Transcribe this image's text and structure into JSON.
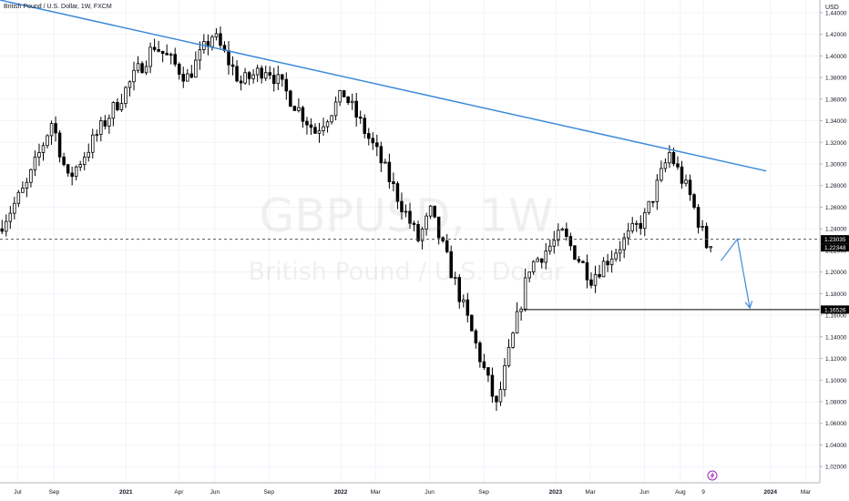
{
  "header": {
    "title": "British Pound / U.S. Dollar, 1W, FXCM",
    "currency": "USD"
  },
  "watermark": {
    "symbol": "GBPUSD, 1W",
    "name": "British Pound / U.S. Dollar"
  },
  "colors": {
    "up_candle_fill": "#ffffff",
    "down_candle_fill": "#000000",
    "candle_outline": "#000000",
    "trendline": "#3d8bd9",
    "projection": "#3d8bd9",
    "support_line": "#000000",
    "label_bg": "#000000",
    "label_text": "#ffffff",
    "axis_text": "#131722",
    "event_icon": "#9c27b0"
  },
  "event_icon": "lightning-icon",
  "chart_data": {
    "type": "candlestick",
    "title": "British Pound / U.S. Dollar, 1W, FXCM",
    "y_unit": "USD",
    "ylim": [
      1.005,
      1.4517
    ],
    "xlim": [
      "2020-06-01",
      "2024-03-25"
    ],
    "grid": true,
    "y_ticks": [
      "1.44000",
      "1.42000",
      "1.40000",
      "1.38000",
      "1.36000",
      "1.34000",
      "1.32000",
      "1.30000",
      "1.28000",
      "1.26000",
      "1.24000",
      "1.22000",
      "1.20000",
      "1.18000",
      "1.16000",
      "1.14000",
      "1.12000",
      "1.10000",
      "1.08000",
      "1.06000",
      "1.04000",
      "1.02000"
    ],
    "x_ticks": [
      {
        "label": "Jul",
        "date": "2020-07-01"
      },
      {
        "label": "Sep",
        "date": "2020-09-01"
      },
      {
        "label": "2021",
        "date": "2021-01-01"
      },
      {
        "label": "Apr",
        "date": "2021-04-01"
      },
      {
        "label": "Jun",
        "date": "2021-06-01"
      },
      {
        "label": "Sep",
        "date": "2021-09-01"
      },
      {
        "label": "2022",
        "date": "2022-01-01"
      },
      {
        "label": "Mar",
        "date": "2022-03-01"
      },
      {
        "label": "Jun",
        "date": "2022-06-01"
      },
      {
        "label": "Sep",
        "date": "2022-09-01"
      },
      {
        "label": "2023",
        "date": "2023-01-01"
      },
      {
        "label": "Mar",
        "date": "2023-03-01"
      },
      {
        "label": "Jun",
        "date": "2023-06-01"
      },
      {
        "label": "Aug",
        "date": "2023-08-01"
      },
      {
        "label": "9",
        "date": "2023-09-09"
      },
      {
        "label": "2024",
        "date": "2024-01-01"
      },
      {
        "label": "Mar",
        "date": "2024-03-01"
      }
    ],
    "price_labels": [
      {
        "text": "1.23035",
        "value": 1.23035
      },
      {
        "text": "1.22348",
        "value": 1.22348
      },
      {
        "text": "1.16526",
        "value": 1.16526
      }
    ],
    "current_price": 1.23035,
    "anchors": [
      {
        "date": "2020-06-01",
        "price": 1.24
      },
      {
        "date": "2020-07-20",
        "price": 1.28
      },
      {
        "date": "2020-09-01",
        "price": 1.34
      },
      {
        "date": "2020-09-28",
        "price": 1.285
      },
      {
        "date": "2020-12-07",
        "price": 1.345
      },
      {
        "date": "2021-02-22",
        "price": 1.41
      },
      {
        "date": "2021-04-19",
        "price": 1.38
      },
      {
        "date": "2021-06-01",
        "price": 1.42
      },
      {
        "date": "2021-07-19",
        "price": 1.375
      },
      {
        "date": "2021-09-01",
        "price": 1.39
      },
      {
        "date": "2021-11-22",
        "price": 1.33
      },
      {
        "date": "2022-01-10",
        "price": 1.365
      },
      {
        "date": "2022-03-07",
        "price": 1.31
      },
      {
        "date": "2022-05-16",
        "price": 1.23
      },
      {
        "date": "2022-06-06",
        "price": 1.255
      },
      {
        "date": "2022-07-18",
        "price": 1.19
      },
      {
        "date": "2022-09-26",
        "price": 1.075
      },
      {
        "date": "2022-11-21",
        "price": 1.205
      },
      {
        "date": "2023-01-16",
        "price": 1.235
      },
      {
        "date": "2023-03-06",
        "price": 1.195
      },
      {
        "date": "2023-06-05",
        "price": 1.25
      },
      {
        "date": "2023-07-17",
        "price": 1.31
      },
      {
        "date": "2023-08-21",
        "price": 1.27
      },
      {
        "date": "2023-09-18",
        "price": 1.225
      }
    ],
    "trendline": [
      {
        "date": "2020-06-01",
        "price": 1.4517
      },
      {
        "date": "2023-12-25",
        "price": 1.2935
      }
    ],
    "support_line": {
      "from": "2022-11-07",
      "to": "2024-03-25",
      "price": 1.16526
    },
    "projection": [
      {
        "date": "2023-10-09",
        "price": 1.2105
      },
      {
        "date": "2023-11-06",
        "price": 1.2305
      },
      {
        "date": "2023-11-27",
        "price": 1.1668
      }
    ]
  }
}
